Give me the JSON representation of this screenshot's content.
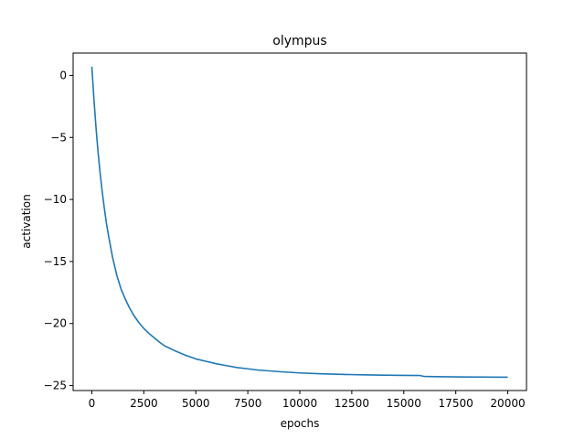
{
  "chart_data": {
    "type": "line",
    "title": "olympus",
    "xlabel": "epochs",
    "ylabel": "activation",
    "xlim": [
      -900,
      20900
    ],
    "ylim": [
      -25.4,
      1.8
    ],
    "x_ticks": [
      0,
      2500,
      5000,
      7500,
      10000,
      12500,
      15000,
      17500,
      20000
    ],
    "x_tick_labels": [
      "0",
      "2500",
      "5000",
      "7500",
      "10000",
      "12500",
      "15000",
      "17500",
      "20000"
    ],
    "y_ticks": [
      0,
      -5,
      -10,
      -15,
      -20,
      -25
    ],
    "y_tick_labels": [
      "0",
      "−5",
      "−10",
      "−15",
      "−20",
      "−25"
    ],
    "grid": false,
    "series": [
      {
        "color": "#1f77b4",
        "x": [
          0,
          100,
          200,
          300,
          400,
          500,
          600,
          700,
          800,
          1000,
          1200,
          1400,
          1600,
          1800,
          2000,
          2250,
          2500,
          2750,
          3000,
          3250,
          3500,
          3750,
          4000,
          4500,
          5000,
          5500,
          6000,
          6500,
          7000,
          7500,
          8000,
          9000,
          10000,
          11000,
          12000,
          13000,
          14000,
          15000,
          15800,
          15900,
          16000,
          16500,
          17000,
          18000,
          19000,
          20000
        ],
        "y": [
          0.7,
          -1.9,
          -4.2,
          -6.2,
          -7.9,
          -9.4,
          -10.7,
          -11.9,
          -12.9,
          -14.7,
          -16.1,
          -17.2,
          -18.0,
          -18.7,
          -19.3,
          -19.9,
          -20.4,
          -20.8,
          -21.15,
          -21.5,
          -21.8,
          -22.0,
          -22.2,
          -22.55,
          -22.85,
          -23.05,
          -23.25,
          -23.4,
          -23.55,
          -23.65,
          -23.75,
          -23.88,
          -23.98,
          -24.05,
          -24.1,
          -24.13,
          -24.16,
          -24.18,
          -24.19,
          -24.24,
          -24.26,
          -24.28,
          -24.29,
          -24.31,
          -24.32,
          -24.33
        ]
      }
    ]
  }
}
